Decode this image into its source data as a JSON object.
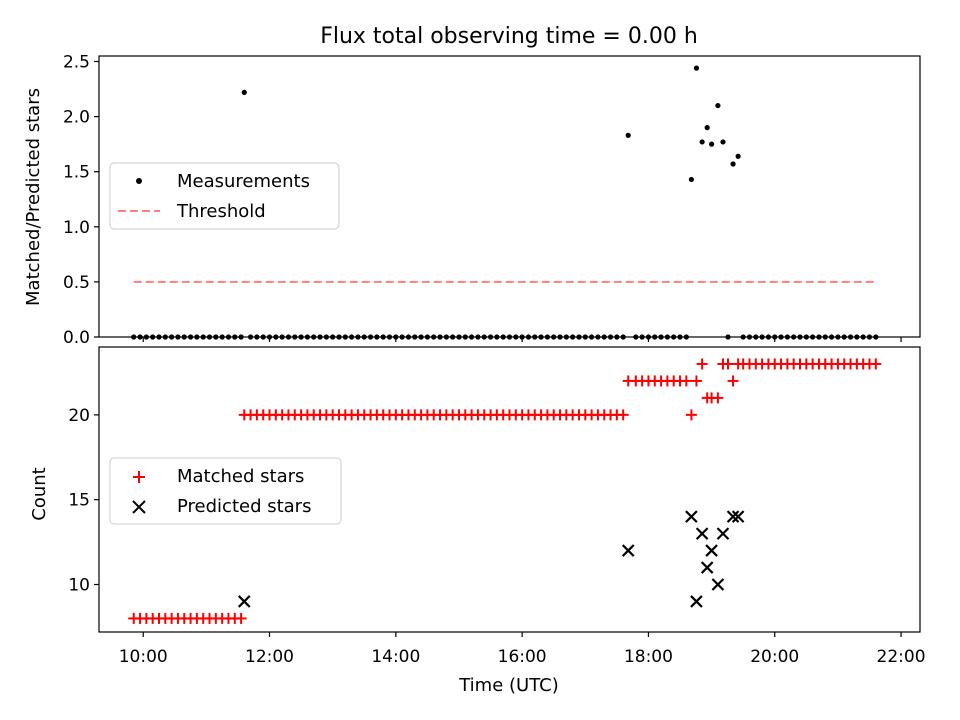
{
  "figure": {
    "title": "Flux total observing time = 0.00 h",
    "xlabel": "Time (UTC)",
    "x_ticks": [
      "10:00",
      "12:00",
      "14:00",
      "16:00",
      "18:00",
      "20:00",
      "22:00"
    ],
    "x_tick_hours": [
      10,
      12,
      14,
      16,
      18,
      20,
      22
    ]
  },
  "chart_data": [
    {
      "type": "scatter",
      "panel": "top",
      "ylabel": "Matched/Predicted stars",
      "y_ticks": [
        "0.0",
        "0.5",
        "1.0",
        "1.5",
        "2.0",
        "2.5"
      ],
      "y_tick_values": [
        0,
        0.5,
        1.0,
        1.5,
        2.0,
        2.5
      ],
      "ylim": [
        0,
        2.55
      ],
      "xlim_hours": [
        9.3,
        22.3
      ],
      "legend": {
        "placement": "center-left",
        "entries": [
          "Measurements",
          "Threshold"
        ]
      },
      "colors": {
        "measurements": "#000000",
        "threshold": "#ff7f7f"
      },
      "series": [
        {
          "name": "Measurements",
          "marker": "dot",
          "x_hours": [
            9.85,
            9.95,
            10.05,
            10.15,
            10.25,
            10.35,
            10.45,
            10.55,
            10.65,
            10.75,
            10.85,
            10.95,
            11.05,
            11.15,
            11.25,
            11.35,
            11.45,
            11.55,
            11.6,
            11.7,
            11.8,
            11.9,
            12.0,
            12.1,
            12.2,
            12.3,
            12.4,
            12.5,
            12.6,
            12.7,
            12.8,
            12.9,
            13.0,
            13.1,
            13.2,
            13.3,
            13.4,
            13.5,
            13.6,
            13.7,
            13.8,
            13.9,
            14.0,
            14.1,
            14.2,
            14.3,
            14.4,
            14.5,
            14.6,
            14.7,
            14.8,
            14.9,
            15.0,
            15.1,
            15.2,
            15.3,
            15.4,
            15.5,
            15.6,
            15.7,
            15.8,
            15.9,
            16.0,
            16.1,
            16.2,
            16.3,
            16.4,
            16.5,
            16.6,
            16.7,
            16.8,
            16.9,
            17.0,
            17.1,
            17.2,
            17.3,
            17.4,
            17.5,
            17.6,
            17.68,
            17.8,
            17.9,
            18.0,
            18.1,
            18.2,
            18.3,
            18.4,
            18.5,
            18.6,
            18.68,
            18.76,
            18.85,
            18.93,
            19.0,
            19.1,
            19.18,
            19.26,
            19.34,
            19.42,
            19.5,
            19.6,
            19.7,
            19.8,
            19.9,
            20.0,
            20.1,
            20.2,
            20.3,
            20.4,
            20.5,
            20.6,
            20.7,
            20.8,
            20.9,
            21.0,
            21.1,
            21.2,
            21.3,
            21.4,
            21.5,
            21.6
          ],
          "y": [
            0,
            0,
            0,
            0,
            0,
            0,
            0,
            0,
            0,
            0,
            0,
            0,
            0,
            0,
            0,
            0,
            0,
            0,
            2.22,
            0,
            0,
            0,
            0,
            0,
            0,
            0,
            0,
            0,
            0,
            0,
            0,
            0,
            0,
            0,
            0,
            0,
            0,
            0,
            0,
            0,
            0,
            0,
            0,
            0,
            0,
            0,
            0,
            0,
            0,
            0,
            0,
            0,
            0,
            0,
            0,
            0,
            0,
            0,
            0,
            0,
            0,
            0,
            0,
            0,
            0,
            0,
            0,
            0,
            0,
            0,
            0,
            0,
            0,
            0,
            0,
            0,
            0,
            0,
            0,
            1.83,
            0,
            0,
            0,
            0,
            0,
            0,
            0,
            0,
            0,
            1.43,
            2.44,
            1.77,
            1.9,
            1.75,
            2.1,
            1.77,
            0,
            1.57,
            1.64,
            0,
            0,
            0,
            0,
            0,
            0,
            0,
            0,
            0,
            0,
            0,
            0,
            0,
            0,
            0,
            0,
            0,
            0,
            0,
            0,
            0,
            0
          ]
        },
        {
          "name": "Threshold",
          "type": "line",
          "style": "dashed",
          "x_hours": [
            9.85,
            21.6
          ],
          "y": [
            0.5,
            0.5
          ]
        }
      ]
    },
    {
      "type": "scatter",
      "panel": "bottom",
      "ylabel": "Count",
      "y_ticks": [
        "10",
        "15",
        "20"
      ],
      "y_tick_values": [
        10,
        15,
        20
      ],
      "ylim": [
        7.2,
        24.0
      ],
      "xlim_hours": [
        9.3,
        22.3
      ],
      "legend": {
        "placement": "center-left",
        "entries": [
          "Matched stars",
          "Predicted stars"
        ]
      },
      "colors": {
        "matched": "#ff0000",
        "predicted": "#000000"
      },
      "series": [
        {
          "name": "Matched stars",
          "marker": "plus",
          "x_hours": [
            9.85,
            9.95,
            10.05,
            10.15,
            10.25,
            10.35,
            10.45,
            10.55,
            10.65,
            10.75,
            10.85,
            10.95,
            11.05,
            11.15,
            11.25,
            11.35,
            11.45,
            11.55,
            11.6,
            11.7,
            11.8,
            11.9,
            12.0,
            12.1,
            12.2,
            12.3,
            12.4,
            12.5,
            12.6,
            12.7,
            12.8,
            12.9,
            13.0,
            13.1,
            13.2,
            13.3,
            13.4,
            13.5,
            13.6,
            13.7,
            13.8,
            13.9,
            14.0,
            14.1,
            14.2,
            14.3,
            14.4,
            14.5,
            14.6,
            14.7,
            14.8,
            14.9,
            15.0,
            15.1,
            15.2,
            15.3,
            15.4,
            15.5,
            15.6,
            15.7,
            15.8,
            15.9,
            16.0,
            16.1,
            16.2,
            16.3,
            16.4,
            16.5,
            16.6,
            16.7,
            16.8,
            16.9,
            17.0,
            17.1,
            17.2,
            17.3,
            17.4,
            17.5,
            17.6,
            17.68,
            17.8,
            17.9,
            18.0,
            18.1,
            18.2,
            18.3,
            18.4,
            18.5,
            18.6,
            18.68,
            18.76,
            18.85,
            18.93,
            19.0,
            19.1,
            19.18,
            19.26,
            19.34,
            19.42,
            19.5,
            19.6,
            19.7,
            19.8,
            19.9,
            20.0,
            20.1,
            20.2,
            20.3,
            20.4,
            20.5,
            20.6,
            20.7,
            20.8,
            20.9,
            21.0,
            21.1,
            21.2,
            21.3,
            21.4,
            21.5,
            21.6
          ],
          "y": [
            8,
            8,
            8,
            8,
            8,
            8,
            8,
            8,
            8,
            8,
            8,
            8,
            8,
            8,
            8,
            8,
            8,
            8,
            20,
            20,
            20,
            20,
            20,
            20,
            20,
            20,
            20,
            20,
            20,
            20,
            20,
            20,
            20,
            20,
            20,
            20,
            20,
            20,
            20,
            20,
            20,
            20,
            20,
            20,
            20,
            20,
            20,
            20,
            20,
            20,
            20,
            20,
            20,
            20,
            20,
            20,
            20,
            20,
            20,
            20,
            20,
            20,
            20,
            20,
            20,
            20,
            20,
            20,
            20,
            20,
            20,
            20,
            20,
            20,
            20,
            20,
            20,
            20,
            20,
            22,
            22,
            22,
            22,
            22,
            22,
            22,
            22,
            22,
            22,
            20,
            22,
            23,
            21,
            21,
            21,
            23,
            23,
            22,
            23,
            23,
            23,
            23,
            23,
            23,
            23,
            23,
            23,
            23,
            23,
            23,
            23,
            23,
            23,
            23,
            23,
            23,
            23,
            23,
            23,
            23,
            23
          ]
        },
        {
          "name": "Predicted stars",
          "marker": "x",
          "x_hours": [
            11.6,
            17.68,
            18.68,
            18.76,
            18.85,
            18.93,
            19.0,
            19.1,
            19.18,
            19.34,
            19.42
          ],
          "y": [
            9,
            12,
            14,
            9,
            13,
            11,
            12,
            10,
            13,
            14,
            14
          ]
        }
      ]
    }
  ]
}
